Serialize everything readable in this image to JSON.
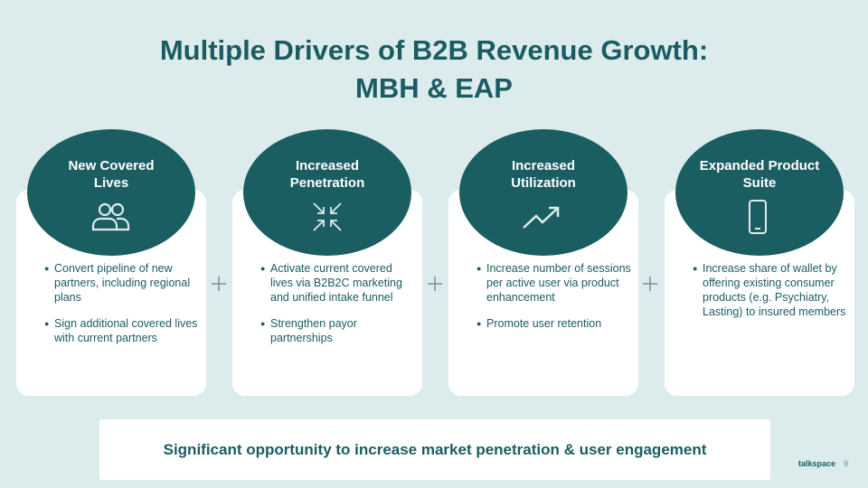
{
  "title": [
    "Multiple Drivers of B2B Revenue Growth:",
    "MBH & EAP"
  ],
  "cards": [
    {
      "heading": [
        "New Covered",
        "Lives"
      ],
      "bullets": [
        "Convert pipeline of new partners, including regional plans",
        "Sign additional covered lives with current partners"
      ]
    },
    {
      "heading": [
        "Increased",
        "Penetration"
      ],
      "bullets": [
        "Activate current covered lives via B2B2C marketing and unified intake funnel",
        "Strengthen payor partnerships"
      ]
    },
    {
      "heading": [
        "Increased",
        "Utilization"
      ],
      "bullets": [
        "Increase number of sessions per active user via product enhancement",
        "Promote user retention"
      ]
    },
    {
      "heading": [
        "Expanded Product",
        "Suite"
      ],
      "bullets": [
        "Increase share of wallet by offering existing consumer products (e.g. Psychiatry, Lasting) to insured members"
      ]
    }
  ],
  "footer": "Significant opportunity to increase market penetration & user engagement",
  "logo": "talkspace",
  "page_number": "9"
}
